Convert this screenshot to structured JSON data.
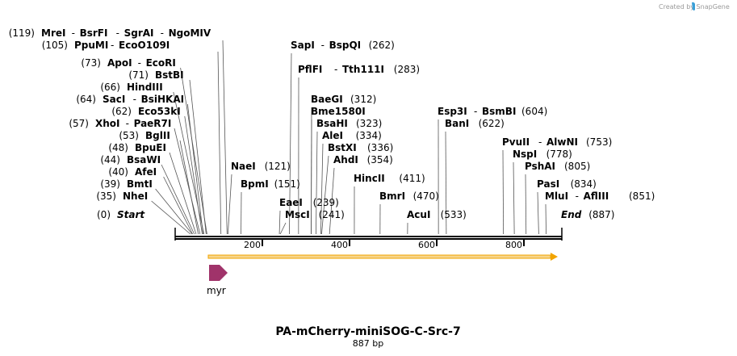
{
  "header": {
    "watermark": "Created by SnapGene",
    "logo_icon": "snapgene-logo-icon"
  },
  "map": {
    "title": "PA-mCherry-miniSOG-C-Src-7",
    "length_label": "887 bp",
    "length": 887,
    "feature_arrow_color": "#f2a400",
    "feature_arrow_fill": "#f7d58c",
    "feature": {
      "name": "myr",
      "start": 80,
      "end": 124,
      "color": "#a0336a"
    },
    "ticks": [
      {
        "pos": 200,
        "label": "200"
      },
      {
        "pos": 400,
        "label": "400"
      },
      {
        "pos": 600,
        "label": "600"
      },
      {
        "pos": 800,
        "label": "800"
      }
    ],
    "sites": [
      {
        "num": "(119)",
        "n": "MreI - BsrFI - SgrAI - NgoMIV",
        "names": [
          "MreI",
          "BsrFI",
          "SgrAI",
          "NgoMIV"
        ]
      },
      {
        "num": "(105)",
        "names": [
          "PpuMI",
          "EcoO109I"
        ]
      },
      {
        "num": "(73)",
        "names": [
          "ApoI",
          "EcoRI"
        ]
      },
      {
        "num": "(71)",
        "names": [
          "BstBI"
        ]
      },
      {
        "num": "(66)",
        "names": [
          "HindIII"
        ]
      },
      {
        "num": "(64)",
        "names": [
          "SacI",
          "BsiHKAI"
        ]
      },
      {
        "num": "(62)",
        "names": [
          "Eco53kI"
        ]
      },
      {
        "num": "(57)",
        "names": [
          "XhoI",
          "PaeR7I"
        ]
      },
      {
        "num": "(53)",
        "names": [
          "BglII"
        ]
      },
      {
        "num": "(48)",
        "names": [
          "BpuEI"
        ]
      },
      {
        "num": "(44)",
        "names": [
          "BsaWI"
        ]
      },
      {
        "num": "(40)",
        "names": [
          "AfeI"
        ]
      },
      {
        "num": "(39)",
        "names": [
          "BmtI"
        ]
      },
      {
        "num": "(35)",
        "names": [
          "NheI"
        ]
      },
      {
        "num": "(0)",
        "names": [
          "Start"
        ]
      },
      {
        "num": "(121)",
        "names": [
          "NaeI"
        ]
      },
      {
        "num": "(151)",
        "names": [
          "BpmI"
        ]
      },
      {
        "num": "(262)",
        "names": [
          "SapI",
          "BspQI"
        ]
      },
      {
        "num": "(283)",
        "names": [
          "PflFI",
          "Tth111I"
        ]
      },
      {
        "num": "(312)",
        "names": [
          "BaeGI"
        ]
      },
      {
        "num": "",
        "names": [
          "Bme1580I"
        ]
      },
      {
        "num": "(323)",
        "names": [
          "BsaHI"
        ]
      },
      {
        "num": "(334)",
        "names": [
          "AleI"
        ]
      },
      {
        "num": "(336)",
        "names": [
          "BstXI"
        ]
      },
      {
        "num": "(354)",
        "names": [
          "AhdI"
        ]
      },
      {
        "num": "(239)",
        "names": [
          "EaeI"
        ]
      },
      {
        "num": "(241)",
        "names": [
          "MscI"
        ]
      },
      {
        "num": "(411)",
        "names": [
          "HincII"
        ]
      },
      {
        "num": "(470)",
        "names": [
          "BmrI"
        ]
      },
      {
        "num": "(533)",
        "names": [
          "AcuI"
        ]
      },
      {
        "num": "(604)",
        "names": [
          "Esp3I",
          "BsmBI"
        ]
      },
      {
        "num": "(622)",
        "names": [
          "BanI"
        ]
      },
      {
        "num": "(753)",
        "names": [
          "PvuII",
          "AlwNI"
        ]
      },
      {
        "num": "(778)",
        "names": [
          "NspI"
        ]
      },
      {
        "num": "(805)",
        "names": [
          "PshAI"
        ]
      },
      {
        "num": "(834)",
        "names": [
          "PasI"
        ]
      },
      {
        "num": "(851)",
        "names": [
          "MluI",
          "AflIII"
        ]
      },
      {
        "num": "(887)",
        "names": [
          "End"
        ]
      }
    ]
  }
}
